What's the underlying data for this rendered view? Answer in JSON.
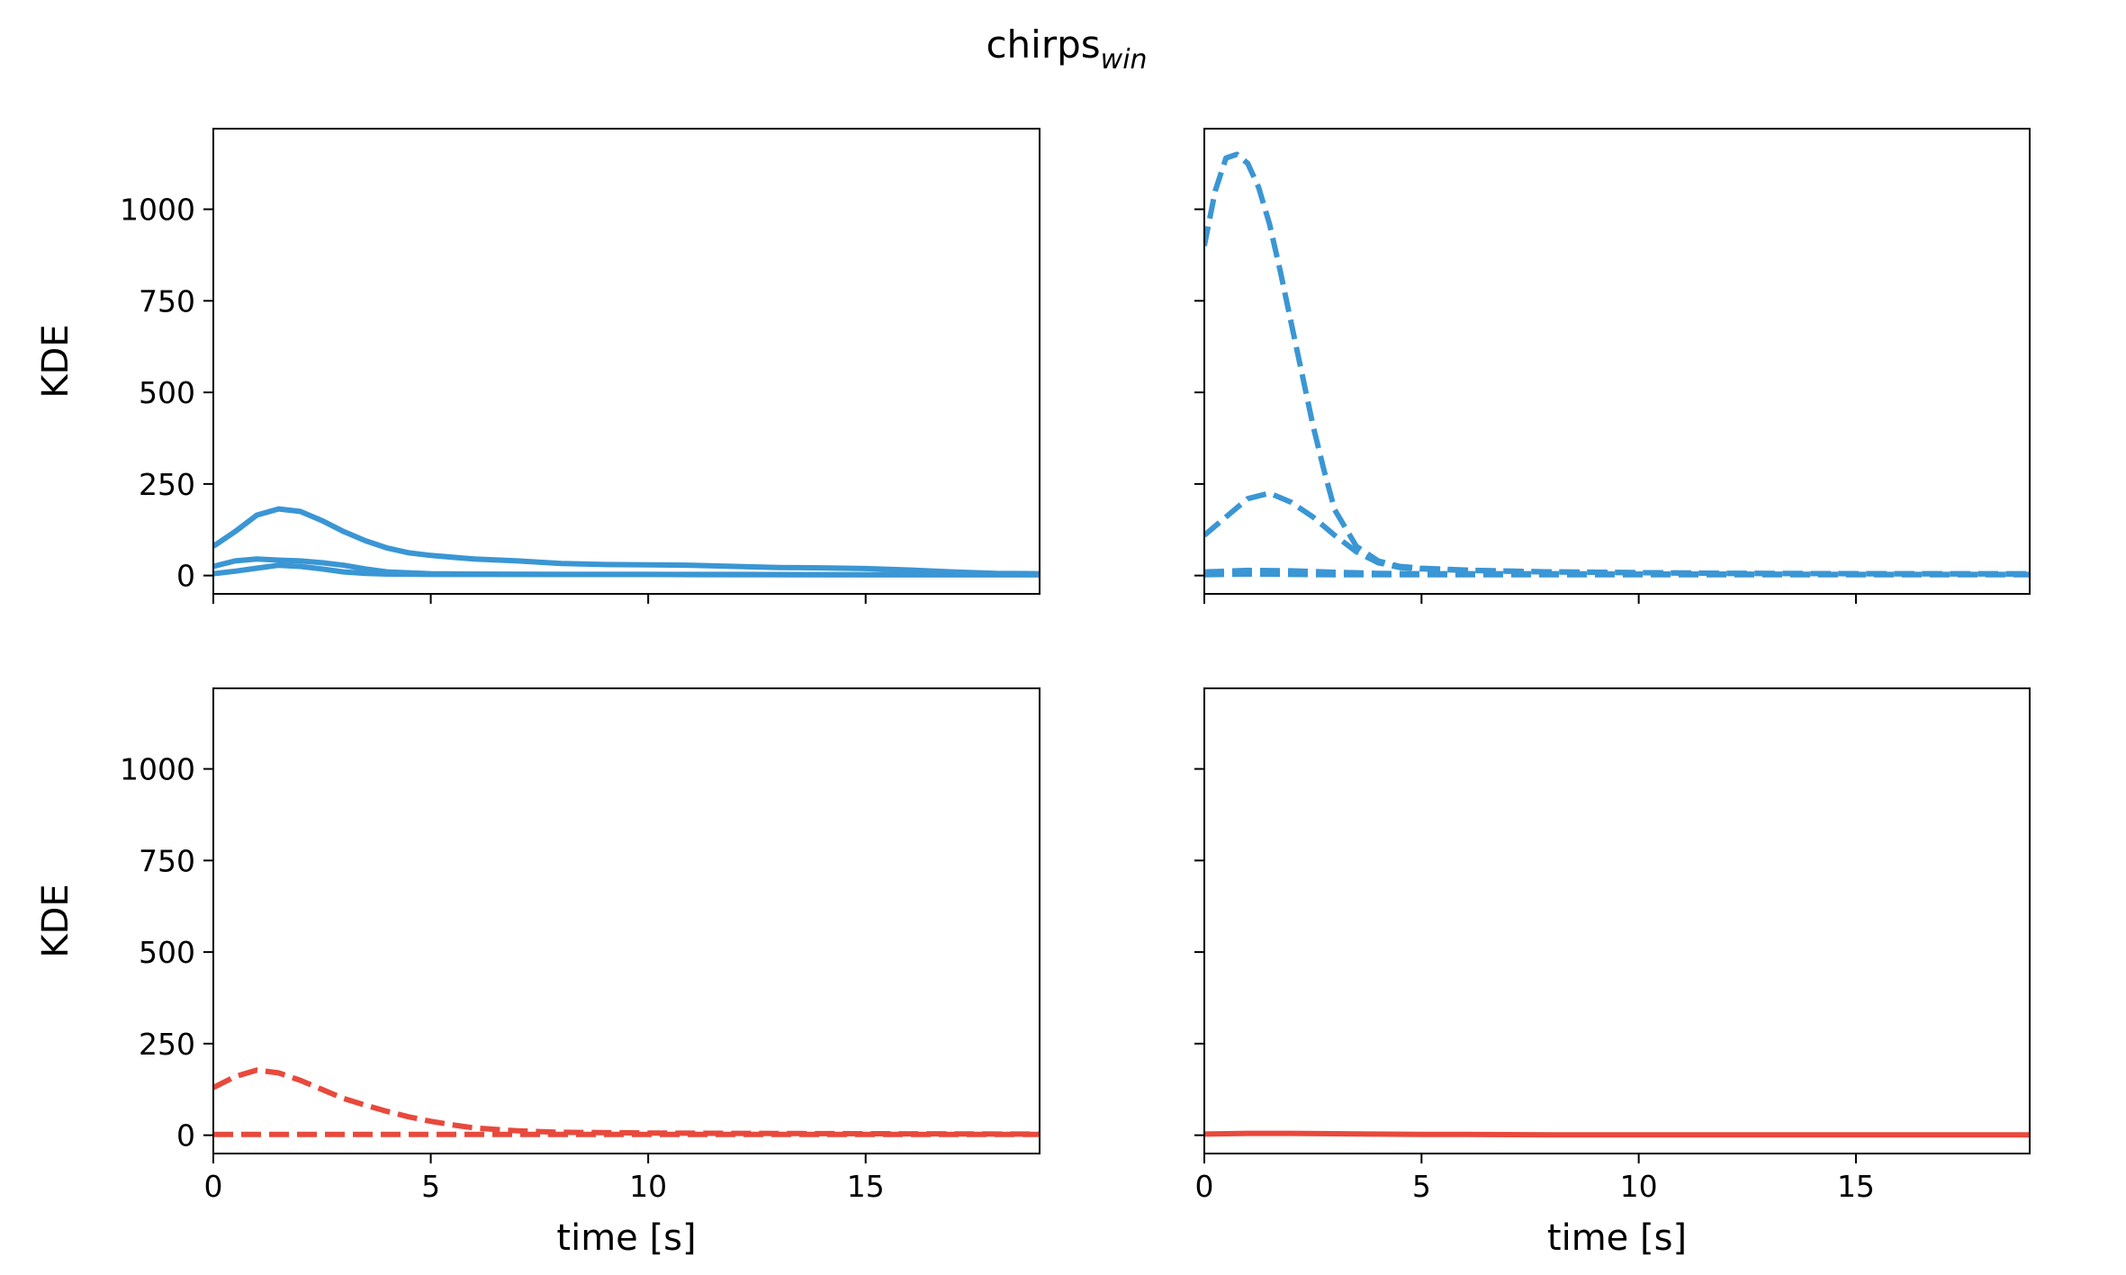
{
  "title": "chirps",
  "title_subscript": "win",
  "colors": {
    "blue": "#3a96d4",
    "red": "#e8493c",
    "axis": "#000000"
  },
  "chart_data": [
    {
      "id": "top-left",
      "type": "line",
      "color": "#3a96d4",
      "ylabel": "KDE",
      "xlabel": "",
      "xlim": [
        0,
        19
      ],
      "ylim": [
        -50,
        1220
      ],
      "xticks": [
        "0",
        "5",
        "10",
        "15"
      ],
      "yticks": [
        "0",
        "250",
        "500",
        "750",
        "1000"
      ],
      "show_xtick_labels": false,
      "show_ytick_labels": true,
      "series": [
        {
          "style": "solid",
          "x": [
            0,
            0.5,
            1,
            1.5,
            2,
            2.5,
            3,
            3.5,
            4,
            4.5,
            5,
            6,
            7,
            8,
            9,
            10,
            11,
            12,
            13,
            14,
            15,
            16,
            17,
            18,
            19
          ],
          "y": [
            80,
            120,
            165,
            182,
            175,
            150,
            120,
            95,
            75,
            62,
            55,
            45,
            40,
            33,
            30,
            29,
            28,
            25,
            22,
            21,
            19,
            15,
            10,
            6,
            5
          ]
        },
        {
          "style": "solid",
          "x": [
            0,
            0.5,
            1,
            1.5,
            2,
            2.5,
            3,
            3.5,
            4,
            5,
            6,
            8,
            10,
            12,
            15,
            19
          ],
          "y": [
            25,
            40,
            45,
            42,
            40,
            35,
            28,
            18,
            10,
            5,
            4,
            3,
            3,
            3,
            2,
            2
          ]
        },
        {
          "style": "solid",
          "x": [
            0,
            0.5,
            1,
            1.5,
            2,
            2.5,
            3,
            3.5,
            4,
            5,
            6,
            8,
            10,
            12,
            15,
            19
          ],
          "y": [
            5,
            12,
            20,
            28,
            25,
            18,
            10,
            6,
            4,
            3,
            3,
            3,
            3,
            2,
            2,
            2
          ]
        }
      ]
    },
    {
      "id": "top-right",
      "type": "line",
      "color": "#3a96d4",
      "ylabel": "",
      "xlabel": "",
      "xlim": [
        0,
        19
      ],
      "ylim": [
        -50,
        1220
      ],
      "xticks": [
        "0",
        "5",
        "10",
        "15"
      ],
      "yticks": [
        "0",
        "250",
        "500",
        "750",
        "1000"
      ],
      "show_xtick_labels": false,
      "show_ytick_labels": false,
      "series": [
        {
          "style": "dashed",
          "x": [
            0,
            0.25,
            0.5,
            0.75,
            1,
            1.25,
            1.5,
            1.75,
            2,
            2.25,
            2.5,
            2.75,
            3,
            3.5,
            4,
            4.5,
            5,
            6,
            7,
            8,
            10,
            12,
            15,
            19
          ],
          "y": [
            900,
            1050,
            1140,
            1150,
            1125,
            1060,
            960,
            830,
            690,
            550,
            410,
            290,
            180,
            80,
            40,
            25,
            20,
            15,
            12,
            10,
            8,
            6,
            5,
            5
          ]
        },
        {
          "style": "dashed",
          "x": [
            0,
            0.5,
            1,
            1.5,
            2,
            2.5,
            3,
            3.5,
            4,
            4.5,
            5,
            6,
            8,
            10,
            12,
            15,
            19
          ],
          "y": [
            110,
            160,
            210,
            225,
            200,
            160,
            110,
            65,
            35,
            22,
            18,
            14,
            10,
            8,
            6,
            5,
            4
          ]
        },
        {
          "style": "dashed",
          "x": [
            0,
            1,
            2,
            3,
            4,
            5,
            6,
            8,
            10,
            12,
            15,
            19
          ],
          "y": [
            10,
            14,
            13,
            9,
            6,
            5,
            5,
            5,
            4,
            4,
            3,
            3
          ]
        },
        {
          "style": "dashed",
          "x": [
            0,
            1,
            2,
            3,
            4,
            5,
            6,
            8,
            10,
            12,
            15,
            19
          ],
          "y": [
            2,
            4,
            3,
            2,
            2,
            2,
            2,
            2,
            2,
            2,
            2,
            2
          ]
        }
      ]
    },
    {
      "id": "bottom-left",
      "type": "line",
      "color": "#e8493c",
      "ylabel": "KDE",
      "xlabel": "time [s]",
      "xlim": [
        0,
        19
      ],
      "ylim": [
        -50,
        1220
      ],
      "xticks": [
        "0",
        "5",
        "10",
        "15"
      ],
      "yticks": [
        "0",
        "250",
        "500",
        "750",
        "1000"
      ],
      "show_xtick_labels": true,
      "show_ytick_labels": true,
      "series": [
        {
          "style": "dashed",
          "x": [
            0,
            0.5,
            1,
            1.5,
            2,
            2.5,
            3,
            3.5,
            4,
            4.5,
            5,
            5.5,
            6,
            7,
            8,
            10,
            12,
            15,
            19
          ],
          "y": [
            130,
            160,
            178,
            170,
            150,
            125,
            100,
            82,
            65,
            50,
            38,
            28,
            20,
            12,
            8,
            6,
            5,
            4,
            3
          ]
        },
        {
          "style": "dashed",
          "x": [
            0,
            2,
            4,
            6,
            8,
            10,
            12,
            15,
            19
          ],
          "y": [
            2,
            2,
            2,
            2,
            2,
            2,
            2,
            2,
            2
          ]
        }
      ]
    },
    {
      "id": "bottom-right",
      "type": "line",
      "color": "#e8493c",
      "ylabel": "",
      "xlabel": "time [s]",
      "xlim": [
        0,
        19
      ],
      "ylim": [
        -50,
        1220
      ],
      "xticks": [
        "0",
        "5",
        "10",
        "15"
      ],
      "yticks": [
        "0",
        "250",
        "500",
        "750",
        "1000"
      ],
      "show_xtick_labels": true,
      "show_ytick_labels": false,
      "series": [
        {
          "style": "solid",
          "x": [
            0,
            1,
            2,
            3,
            4,
            5,
            6,
            8,
            10,
            12,
            15,
            19
          ],
          "y": [
            3,
            5,
            5,
            4,
            3,
            2,
            2,
            1,
            1,
            1,
            1,
            1
          ]
        }
      ]
    }
  ]
}
